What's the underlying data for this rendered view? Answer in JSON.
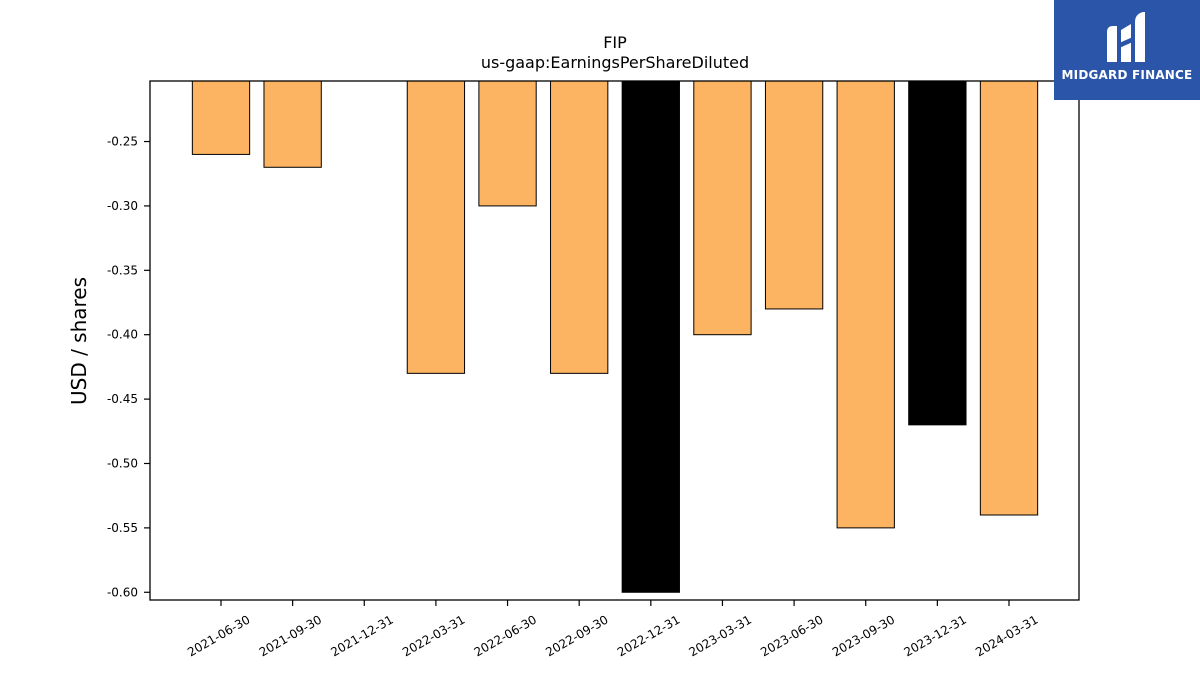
{
  "chart_data": {
    "type": "bar",
    "title": "FIP",
    "subtitle": "us-gaap:EarningsPerShareDiluted",
    "xlabel": "",
    "ylabel": "USD / shares",
    "categories": [
      "2021-06-30",
      "2021-09-30",
      "2021-12-31",
      "2022-03-31",
      "2022-06-30",
      "2022-09-30",
      "2022-12-31",
      "2023-03-31",
      "2023-06-30",
      "2023-09-30",
      "2023-12-31",
      "2024-03-31"
    ],
    "values": [
      -0.26,
      -0.27,
      null,
      -0.43,
      -0.3,
      -0.43,
      -0.6,
      -0.4,
      -0.38,
      -0.55,
      -0.47,
      -0.54
    ],
    "bar_colors": [
      "#fdb462",
      "#fdb462",
      null,
      "#fdb462",
      "#fdb462",
      "#fdb462",
      "#000000",
      "#fdb462",
      "#fdb462",
      "#fdb462",
      "#000000",
      "#fdb462"
    ],
    "ylim": [
      -0.606,
      -0.203
    ],
    "yticks": [
      -0.25,
      -0.3,
      -0.35,
      -0.4,
      -0.45,
      -0.5,
      -0.55,
      -0.6
    ],
    "ytick_labels": [
      "-0.25",
      "-0.30",
      "-0.35",
      "-0.40",
      "-0.45",
      "-0.50",
      "-0.55",
      "-0.60"
    ],
    "grid": false,
    "legend": "none"
  },
  "logo": {
    "text": "MIDGARD FINANCE",
    "color": "#2a55a8"
  }
}
